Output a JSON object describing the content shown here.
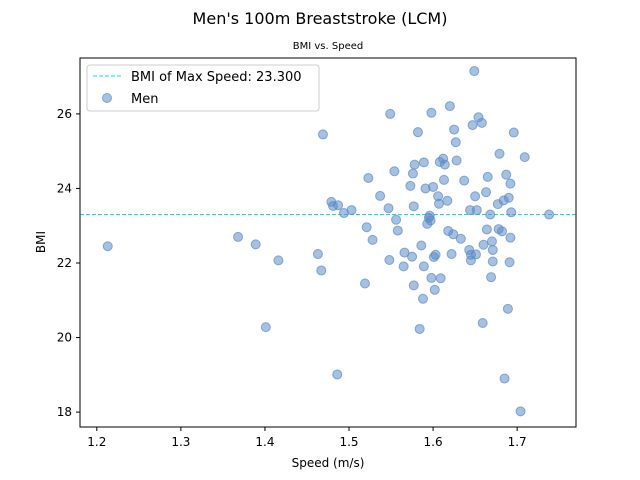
{
  "chart_data": {
    "type": "scatter",
    "title": "Men's 100m Breaststroke (LCM)",
    "subtitle": "BMI vs. Speed",
    "xlabel": "Speed (m/s)",
    "ylabel": "BMI",
    "xlim": [
      1.18,
      1.77
    ],
    "ylim": [
      17.6,
      27.5
    ],
    "xticks": [
      "1.2",
      "1.3",
      "1.4",
      "1.5",
      "1.6",
      "1.7"
    ],
    "yticks": [
      "18",
      "20",
      "22",
      "24",
      "26"
    ],
    "grid": false,
    "legend_position": "top-left",
    "reference_line": {
      "label": "BMI of Max Speed: 23.300",
      "y": 23.3,
      "color": "#00e5e5"
    },
    "series": [
      {
        "name": "Men",
        "color": "#5b8cc6",
        "points": [
          [
            1.213,
            22.45
          ],
          [
            1.368,
            22.7
          ],
          [
            1.389,
            22.5
          ],
          [
            1.401,
            20.28
          ],
          [
            1.416,
            22.07
          ],
          [
            1.463,
            22.24
          ],
          [
            1.467,
            21.8
          ],
          [
            1.469,
            25.45
          ],
          [
            1.479,
            23.64
          ],
          [
            1.481,
            23.53
          ],
          [
            1.486,
            19.01
          ],
          [
            1.487,
            23.55
          ],
          [
            1.494,
            23.34
          ],
          [
            1.503,
            23.42
          ],
          [
            1.519,
            21.45
          ],
          [
            1.521,
            22.96
          ],
          [
            1.523,
            24.28
          ],
          [
            1.528,
            22.62
          ],
          [
            1.537,
            23.8
          ],
          [
            1.547,
            23.47
          ],
          [
            1.548,
            22.08
          ],
          [
            1.549,
            26.0
          ],
          [
            1.554,
            24.46
          ],
          [
            1.556,
            23.16
          ],
          [
            1.558,
            22.87
          ],
          [
            1.565,
            21.91
          ],
          [
            1.566,
            22.28
          ],
          [
            1.573,
            24.07
          ],
          [
            1.575,
            22.17
          ],
          [
            1.576,
            24.4
          ],
          [
            1.577,
            23.52
          ],
          [
            1.577,
            21.4
          ],
          [
            1.578,
            24.64
          ],
          [
            1.582,
            25.51
          ],
          [
            1.584,
            20.23
          ],
          [
            1.586,
            22.47
          ],
          [
            1.588,
            21.04
          ],
          [
            1.589,
            24.7
          ],
          [
            1.589,
            21.91
          ],
          [
            1.591,
            24.0
          ],
          [
            1.593,
            23.05
          ],
          [
            1.595,
            23.21
          ],
          [
            1.596,
            23.27
          ],
          [
            1.597,
            23.14
          ],
          [
            1.598,
            26.03
          ],
          [
            1.598,
            21.6
          ],
          [
            1.6,
            24.04
          ],
          [
            1.601,
            22.16
          ],
          [
            1.602,
            21.28
          ],
          [
            1.603,
            22.22
          ],
          [
            1.606,
            23.79
          ],
          [
            1.607,
            23.59
          ],
          [
            1.608,
            24.71
          ],
          [
            1.609,
            21.59
          ],
          [
            1.612,
            24.8
          ],
          [
            1.613,
            24.23
          ],
          [
            1.614,
            24.64
          ],
          [
            1.617,
            23.67
          ],
          [
            1.618,
            22.86
          ],
          [
            1.62,
            26.21
          ],
          [
            1.622,
            22.24
          ],
          [
            1.624,
            22.77
          ],
          [
            1.625,
            25.58
          ],
          [
            1.627,
            25.24
          ],
          [
            1.628,
            24.75
          ],
          [
            1.633,
            22.65
          ],
          [
            1.637,
            24.21
          ],
          [
            1.643,
            22.35
          ],
          [
            1.644,
            23.42
          ],
          [
            1.645,
            22.22
          ],
          [
            1.645,
            22.07
          ],
          [
            1.647,
            25.7
          ],
          [
            1.649,
            27.15
          ],
          [
            1.65,
            23.79
          ],
          [
            1.651,
            22.23
          ],
          [
            1.652,
            23.42
          ],
          [
            1.654,
            25.91
          ],
          [
            1.658,
            25.76
          ],
          [
            1.659,
            20.39
          ],
          [
            1.66,
            22.49
          ],
          [
            1.663,
            23.9
          ],
          [
            1.664,
            22.9
          ],
          [
            1.665,
            24.31
          ],
          [
            1.668,
            23.3
          ],
          [
            1.669,
            21.62
          ],
          [
            1.67,
            22.58
          ],
          [
            1.671,
            22.04
          ],
          [
            1.671,
            22.35
          ],
          [
            1.677,
            23.58
          ],
          [
            1.678,
            22.91
          ],
          [
            1.679,
            24.93
          ],
          [
            1.682,
            22.85
          ],
          [
            1.684,
            23.68
          ],
          [
            1.685,
            18.9
          ],
          [
            1.687,
            24.37
          ],
          [
            1.689,
            20.77
          ],
          [
            1.69,
            23.75
          ],
          [
            1.691,
            22.02
          ],
          [
            1.692,
            24.13
          ],
          [
            1.692,
            22.68
          ],
          [
            1.693,
            23.36
          ],
          [
            1.696,
            25.5
          ],
          [
            1.704,
            18.02
          ],
          [
            1.709,
            24.84
          ],
          [
            1.738,
            23.3
          ]
        ]
      }
    ]
  }
}
